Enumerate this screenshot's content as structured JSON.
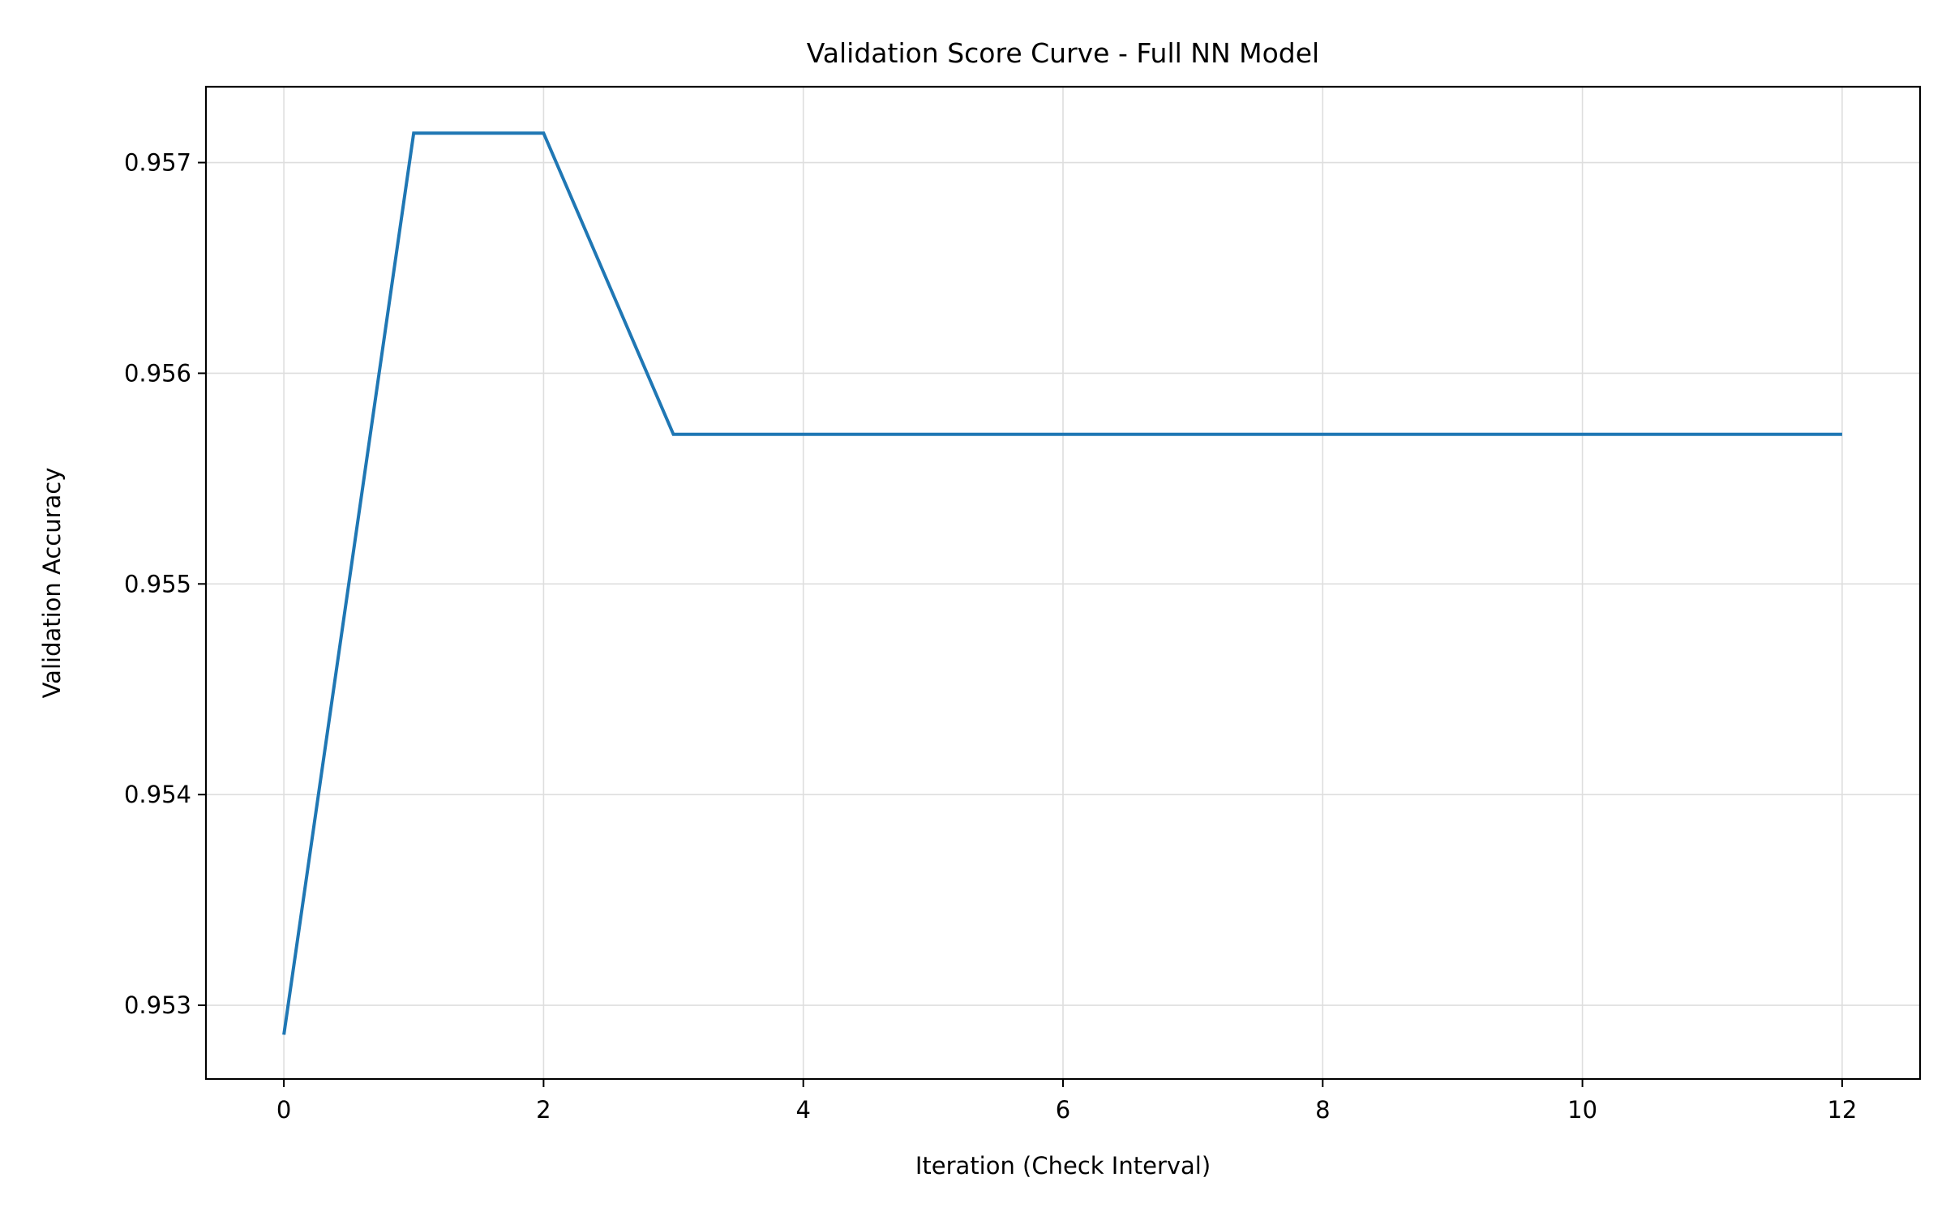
{
  "chart_data": {
    "type": "line",
    "title": "Validation Score Curve - Full NN Model",
    "xlabel": "Iteration (Check Interval)",
    "ylabel": "Validation Accuracy",
    "xlim": [
      -0.6,
      12.6
    ],
    "ylim": [
      0.95265,
      0.95736
    ],
    "xticks": [
      0,
      2,
      4,
      6,
      8,
      10,
      12
    ],
    "xtick_labels": [
      "0",
      "2",
      "4",
      "6",
      "8",
      "10",
      "12"
    ],
    "yticks": [
      0.953,
      0.954,
      0.955,
      0.956,
      0.957
    ],
    "ytick_labels": [
      "0.953",
      "0.954",
      "0.955",
      "0.956",
      "0.957"
    ],
    "grid": true,
    "series": [
      {
        "color": "#1f77b4",
        "x": [
          0,
          1,
          2,
          3,
          4,
          5,
          6,
          7,
          8,
          9,
          10,
          11,
          12
        ],
        "values": [
          0.95286,
          0.95714,
          0.95714,
          0.95571,
          0.95571,
          0.95571,
          0.95571,
          0.95571,
          0.95571,
          0.95571,
          0.95571,
          0.95571,
          0.95571
        ]
      }
    ]
  }
}
